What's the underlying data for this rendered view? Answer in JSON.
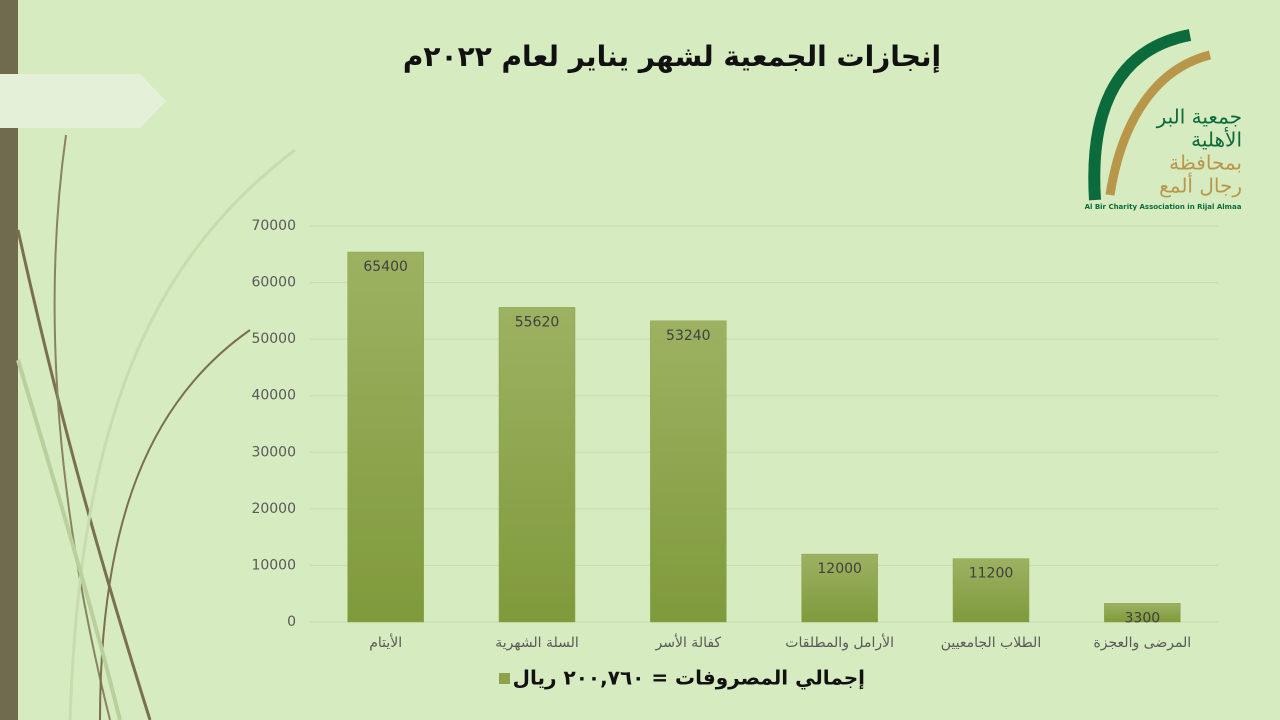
{
  "chart_data": {
    "type": "bar",
    "title": "إنجازات الجمعية لشهر يناير لعام ٢٠٢٢م",
    "categories": [
      "الأيتام",
      "السلة الشهرية",
      "كفالة الأسر",
      "الأرامل والمطلقات",
      "الطلاب الجامعيين",
      "المرضى والعجزة"
    ],
    "series": [
      {
        "name": "إجمالي المصروفات = ٢٠٠,٧٦٠ ريال",
        "color": "#8ea24c",
        "values": [
          65400,
          55620,
          53240,
          12000,
          11200,
          3300
        ]
      }
    ],
    "ylim": [
      0,
      70000
    ],
    "yticks": [
      0,
      10000,
      20000,
      30000,
      40000,
      50000,
      60000,
      70000
    ],
    "grid": true,
    "legend": "bottom"
  },
  "logo": {
    "line1": "جمعية البر",
    "line2": "الأهلية",
    "line3": "بمحافظة",
    "line4": "رجال ألمع",
    "english": "Al Bir Charity Association in Rijal Almaa"
  }
}
